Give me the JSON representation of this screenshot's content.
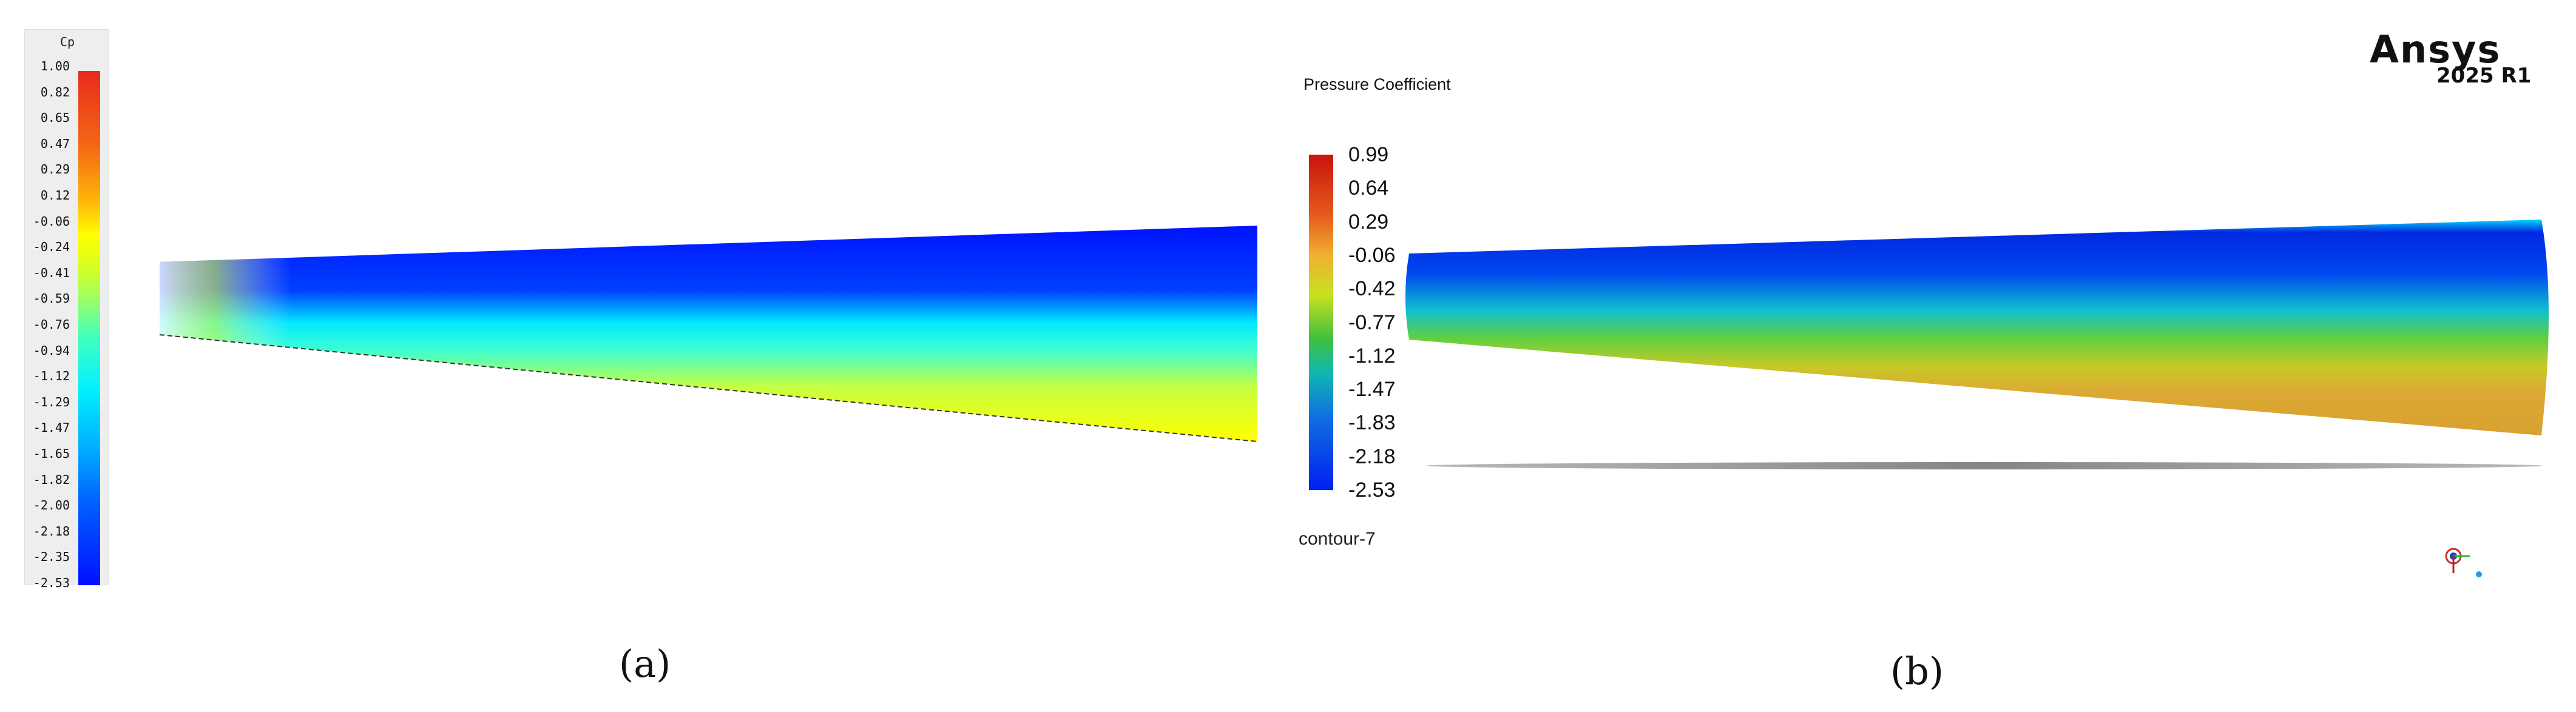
{
  "panel_a": {
    "legend_title": "Cp",
    "ticks": [
      "1.00",
      "0.82",
      "0.65",
      "0.47",
      "0.29",
      "0.12",
      "-0.06",
      "-0.24",
      "-0.41",
      "-0.59",
      "-0.76",
      "-0.94",
      "-1.12",
      "-1.29",
      "-1.47",
      "-1.65",
      "-1.82",
      "-2.00",
      "-2.18",
      "-2.35",
      "-2.53"
    ],
    "caption": "(a)"
  },
  "panel_b": {
    "legend_title": "Pressure Coefficient",
    "ticks": [
      "0.99",
      "0.64",
      "0.29",
      "-0.06",
      "-0.42",
      "-0.77",
      "-1.12",
      "-1.47",
      "-1.83",
      "-2.18",
      "-2.53"
    ],
    "contour_name": "contour-7",
    "logo_text": "Ansys",
    "logo_version": "2025 R1",
    "caption": "(b)"
  },
  "colors": {
    "cp_high": "#e8281c",
    "cp_mid": "#ffff00",
    "cp_cyan": "#00e5ff",
    "cp_low": "#0010ff"
  }
}
